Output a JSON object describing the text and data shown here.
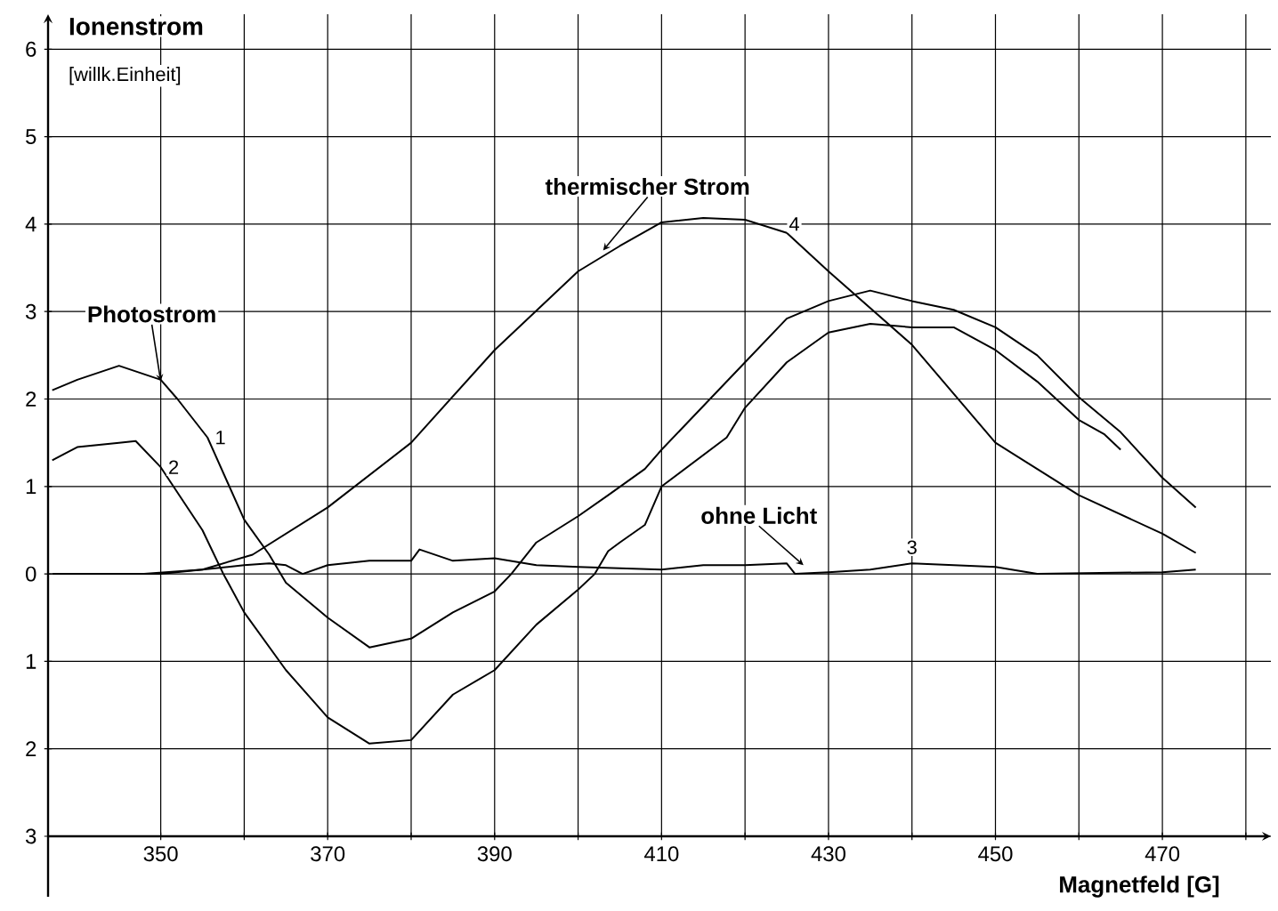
{
  "chart_data": {
    "type": "line",
    "ylabel": "Ionenstrom",
    "xlabel": "Magnetfeld [G]",
    "xlim": [
      336.5,
      483
    ],
    "ylim": [
      -3,
      6.4
    ],
    "xticks": [
      350,
      {
        "value": 360,
        "label": null
      },
      370,
      {
        "value": 380,
        "label": null
      },
      390,
      {
        "value": 400,
        "label": null
      },
      410,
      {
        "value": 420,
        "label": null
      },
      430,
      {
        "value": 440,
        "label": null
      },
      450,
      {
        "value": 460,
        "label": null
      },
      470,
      {
        "value": 480,
        "label": null
      }
    ],
    "yticks": [
      {
        "value": -3,
        "label": "3"
      },
      {
        "value": -2,
        "label": "2"
      },
      {
        "value": -1,
        "label": "1"
      },
      0,
      1,
      2,
      3,
      4,
      5,
      6
    ],
    "grid": true,
    "marker": "none",
    "line_style": "solid",
    "annotations": [
      "[willk.Einheit]",
      {
        "text": "Photostrom",
        "x": 350,
        "y": 2.2
      },
      {
        "text": "thermischer Strom",
        "x": 403,
        "y": 3.7
      },
      {
        "text": "ohne Licht",
        "x": 427,
        "y": 0.1
      }
    ],
    "series": [
      {
        "name": "1",
        "color": "#000000",
        "x": [
          337,
          340,
          345,
          350,
          352,
          355.6,
          360,
          363,
          365,
          370,
          375,
          380,
          385,
          390,
          392,
          395,
          400,
          403.6,
          408,
          410,
          420,
          425,
          430,
          435,
          440,
          445,
          450,
          455,
          460,
          465,
          470,
          474
        ],
        "values": [
          2.1,
          2.22,
          2.38,
          2.22,
          2.0,
          1.56,
          0.62,
          0.22,
          -0.1,
          -0.5,
          -0.84,
          -0.74,
          -0.44,
          -0.2,
          0,
          0.36,
          0.66,
          0.9,
          1.2,
          1.42,
          2.42,
          2.92,
          3.12,
          3.24,
          3.12,
          3.02,
          2.82,
          2.5,
          2.02,
          1.62,
          1.1,
          0.76
        ]
      },
      {
        "name": "2",
        "color": "#000000",
        "x": [
          337,
          340,
          345,
          347,
          350,
          355,
          357.5,
          360,
          365,
          370,
          375,
          380,
          385,
          390,
          395,
          400,
          402,
          403.6,
          405,
          408,
          410,
          417.8,
          420,
          425,
          430,
          435,
          440,
          445,
          450,
          455,
          460,
          463,
          465
        ],
        "values": [
          1.3,
          1.45,
          1.5,
          1.52,
          1.22,
          0.5,
          0,
          -0.44,
          -1.1,
          -1.64,
          -1.94,
          -1.9,
          -1.38,
          -1.1,
          -0.58,
          -0.18,
          0,
          0.26,
          0.36,
          0.56,
          1.0,
          1.56,
          1.9,
          2.42,
          2.76,
          2.86,
          2.82,
          2.82,
          2.56,
          2.2,
          1.76,
          1.6,
          1.42
        ]
      },
      {
        "name": "3",
        "color": "#000000",
        "x": [
          337,
          350,
          355,
          360,
          363,
          365,
          367,
          370,
          375,
          380,
          381,
          385,
          390,
          395,
          400,
          410,
          415,
          420,
          425,
          426,
          430,
          435,
          440,
          445,
          450,
          455,
          470,
          474
        ],
        "values": [
          0,
          0,
          0.05,
          0.1,
          0.12,
          0.1,
          0,
          0.1,
          0.15,
          0.15,
          0.28,
          0.15,
          0.18,
          0.1,
          0.08,
          0.05,
          0.1,
          0.1,
          0.12,
          0,
          0.02,
          0.05,
          0.12,
          0.1,
          0.08,
          0,
          0.02,
          0.05
        ]
      },
      {
        "name": "4",
        "color": "#000000",
        "x": [
          348,
          355,
          361,
          370,
          380,
          390,
          400,
          405,
          410,
          415,
          420,
          425,
          430,
          440,
          450,
          455,
          460,
          470,
          474
        ],
        "values": [
          0,
          0.05,
          0.22,
          0.76,
          1.5,
          2.56,
          3.46,
          3.75,
          4.02,
          4.07,
          4.05,
          3.9,
          3.46,
          2.62,
          1.5,
          1.2,
          0.9,
          0.46,
          0.24
        ]
      }
    ]
  }
}
